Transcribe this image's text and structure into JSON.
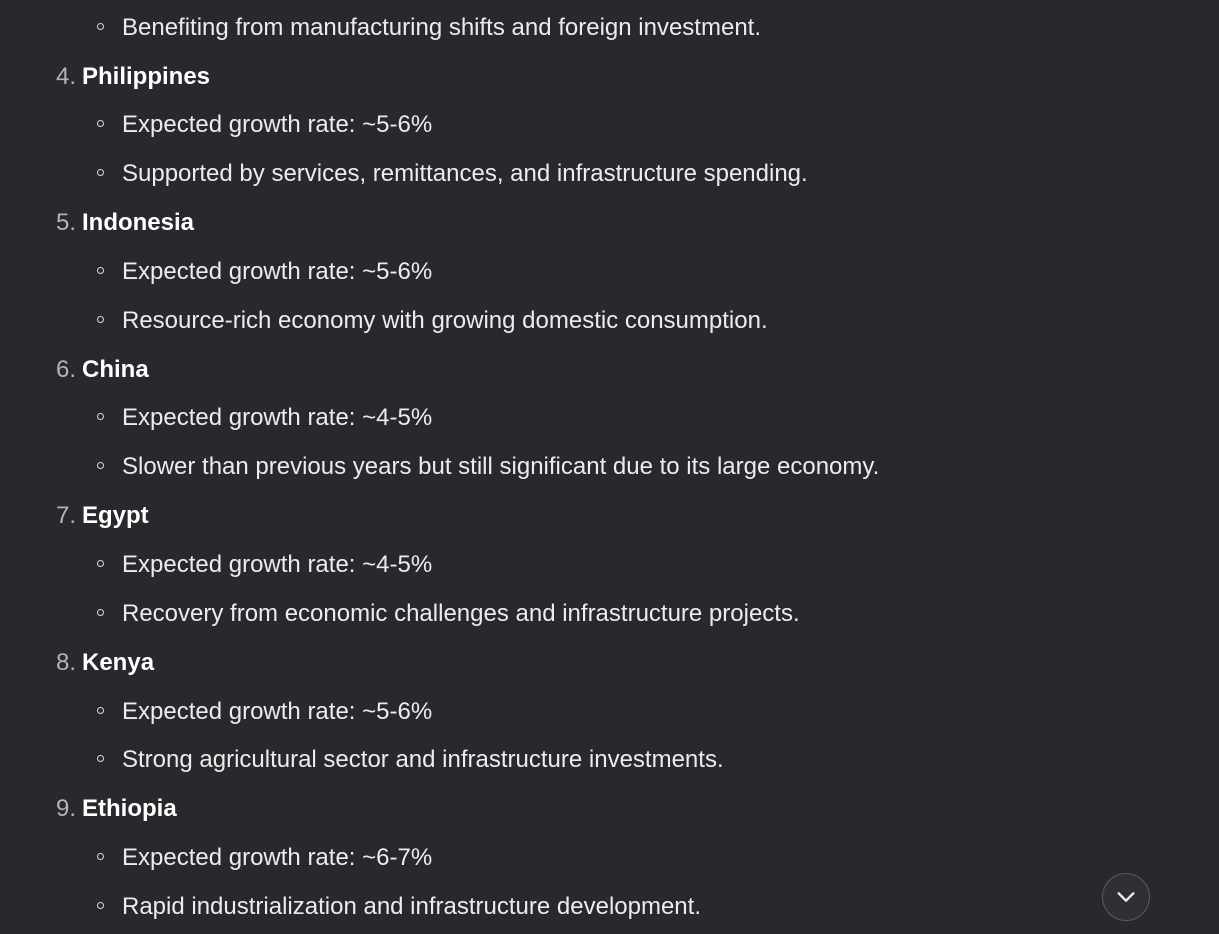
{
  "list": {
    "top_bullet": "Benefiting from manufacturing shifts and foreign investment.",
    "items": [
      {
        "number": "4.",
        "country": "Philippines",
        "bullets": [
          "Expected growth rate: ~5-6%",
          "Supported by services, remittances, and infrastructure spending."
        ]
      },
      {
        "number": "5.",
        "country": "Indonesia",
        "bullets": [
          "Expected growth rate: ~5-6%",
          "Resource-rich economy with growing domestic consumption."
        ]
      },
      {
        "number": "6.",
        "country": "China",
        "bullets": [
          "Expected growth rate: ~4-5%",
          "Slower than previous years but still significant due to its large economy."
        ]
      },
      {
        "number": "7.",
        "country": "Egypt",
        "bullets": [
          "Expected growth rate: ~4-5%",
          "Recovery from economic challenges and infrastructure projects."
        ]
      },
      {
        "number": "8.",
        "country": "Kenya",
        "bullets": [
          "Expected growth rate: ~5-6%",
          "Strong agricultural sector and infrastructure investments."
        ]
      },
      {
        "number": "9.",
        "country": "Ethiopia",
        "bullets": [
          "Expected growth rate: ~6-7%",
          "Rapid industrialization and infrastructure development."
        ]
      }
    ]
  },
  "scroll_button": {
    "icon": "chevron-down-icon"
  },
  "colors": {
    "background": "#28292d",
    "text": "#ececec",
    "heading": "#ffffff",
    "number": "#b4b4b4"
  }
}
